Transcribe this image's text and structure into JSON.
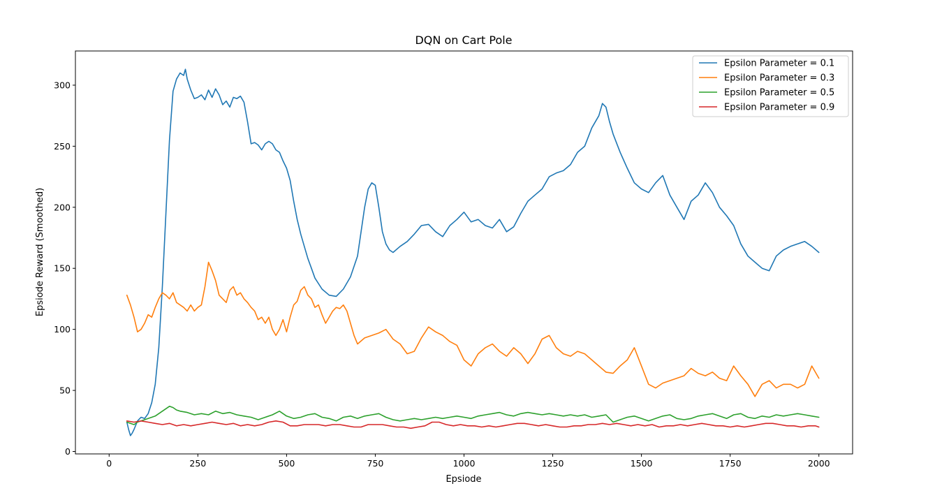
{
  "chart_data": {
    "type": "line",
    "title": "DQN on Cart Pole",
    "xlabel": "Epsiode",
    "ylabel": "Epsiode Reward (Smoothed)",
    "xlim": [
      -95,
      2095
    ],
    "ylim": [
      -2,
      328
    ],
    "xticks": [
      0,
      250,
      500,
      750,
      1000,
      1250,
      1500,
      1750,
      2000
    ],
    "yticks": [
      0,
      50,
      100,
      150,
      200,
      250,
      300
    ],
    "grid": false,
    "legend_position": "top-right",
    "series": [
      {
        "name": "Epsilon Parameter = 0.1",
        "color": "#1f77b4",
        "x": [
          50,
          55,
          60,
          65,
          70,
          80,
          90,
          100,
          110,
          120,
          130,
          140,
          150,
          160,
          170,
          180,
          190,
          200,
          210,
          215,
          220,
          230,
          240,
          250,
          260,
          270,
          280,
          290,
          300,
          310,
          320,
          330,
          340,
          350,
          360,
          370,
          380,
          390,
          400,
          410,
          420,
          430,
          440,
          450,
          460,
          470,
          480,
          490,
          500,
          510,
          520,
          530,
          540,
          550,
          560,
          570,
          580,
          600,
          620,
          640,
          660,
          680,
          700,
          710,
          720,
          730,
          740,
          750,
          760,
          770,
          780,
          790,
          800,
          820,
          840,
          860,
          880,
          900,
          920,
          940,
          960,
          980,
          1000,
          1020,
          1040,
          1060,
          1080,
          1100,
          1120,
          1140,
          1160,
          1180,
          1200,
          1220,
          1240,
          1260,
          1280,
          1300,
          1320,
          1340,
          1360,
          1380,
          1390,
          1400,
          1410,
          1420,
          1440,
          1460,
          1480,
          1500,
          1520,
          1540,
          1560,
          1580,
          1600,
          1620,
          1640,
          1660,
          1680,
          1700,
          1720,
          1740,
          1760,
          1780,
          1800,
          1820,
          1840,
          1860,
          1880,
          1900,
          1920,
          1940,
          1960,
          1980,
          2000
        ],
        "y": [
          24,
          18,
          13,
          15,
          18,
          25,
          28,
          27,
          31,
          40,
          55,
          85,
          135,
          195,
          255,
          295,
          305,
          310,
          308,
          313,
          305,
          296,
          289,
          290,
          292,
          288,
          296,
          290,
          297,
          292,
          284,
          287,
          282,
          290,
          289,
          291,
          286,
          270,
          252,
          253,
          251,
          247,
          252,
          254,
          252,
          247,
          245,
          238,
          232,
          222,
          205,
          190,
          178,
          168,
          158,
          150,
          142,
          133,
          128,
          127,
          133,
          143,
          160,
          180,
          200,
          215,
          220,
          218,
          200,
          180,
          170,
          165,
          163,
          168,
          172,
          178,
          185,
          186,
          180,
          176,
          185,
          190,
          196,
          188,
          190,
          185,
          183,
          190,
          180,
          184,
          195,
          205,
          210,
          215,
          225,
          228,
          230,
          235,
          245,
          250,
          265,
          275,
          285,
          282,
          270,
          260,
          245,
          232,
          220,
          215,
          212,
          220,
          226,
          210,
          200,
          190,
          205,
          210,
          220,
          212,
          200,
          193,
          185,
          170,
          160,
          155,
          150,
          148,
          160,
          165,
          168,
          170,
          172,
          168,
          163
        ]
      },
      {
        "name": "Epsilon Parameter = 0.3",
        "color": "#ff7f0e",
        "x": [
          50,
          60,
          70,
          80,
          90,
          100,
          110,
          120,
          130,
          140,
          150,
          160,
          170,
          180,
          190,
          200,
          210,
          220,
          230,
          240,
          250,
          260,
          270,
          280,
          290,
          300,
          310,
          320,
          330,
          340,
          350,
          360,
          370,
          380,
          390,
          400,
          410,
          420,
          430,
          440,
          450,
          460,
          470,
          480,
          490,
          500,
          510,
          520,
          530,
          540,
          550,
          560,
          570,
          580,
          590,
          600,
          610,
          620,
          630,
          640,
          650,
          660,
          670,
          680,
          690,
          700,
          720,
          740,
          760,
          780,
          800,
          820,
          840,
          860,
          880,
          900,
          920,
          940,
          960,
          980,
          1000,
          1020,
          1040,
          1060,
          1080,
          1100,
          1120,
          1140,
          1160,
          1180,
          1200,
          1220,
          1240,
          1260,
          1280,
          1300,
          1320,
          1340,
          1360,
          1380,
          1400,
          1420,
          1440,
          1460,
          1480,
          1500,
          1520,
          1540,
          1560,
          1580,
          1600,
          1620,
          1640,
          1660,
          1680,
          1700,
          1720,
          1740,
          1760,
          1780,
          1800,
          1820,
          1840,
          1860,
          1880,
          1900,
          1920,
          1940,
          1960,
          1980,
          2000
        ],
        "y": [
          128,
          120,
          110,
          98,
          100,
          105,
          112,
          110,
          118,
          125,
          130,
          128,
          125,
          130,
          122,
          120,
          118,
          115,
          120,
          115,
          118,
          120,
          135,
          155,
          148,
          140,
          128,
          125,
          122,
          132,
          135,
          128,
          130,
          125,
          122,
          118,
          115,
          108,
          110,
          105,
          110,
          100,
          95,
          100,
          108,
          98,
          110,
          120,
          123,
          132,
          135,
          128,
          125,
          118,
          120,
          112,
          105,
          110,
          115,
          118,
          117,
          120,
          115,
          105,
          95,
          88,
          93,
          95,
          97,
          100,
          92,
          88,
          80,
          82,
          93,
          102,
          98,
          95,
          90,
          87,
          75,
          70,
          80,
          85,
          88,
          82,
          78,
          85,
          80,
          72,
          80,
          92,
          95,
          85,
          80,
          78,
          82,
          80,
          75,
          70,
          65,
          64,
          70,
          75,
          85,
          70,
          55,
          52,
          56,
          58,
          60,
          62,
          68,
          64,
          62,
          65,
          60,
          58,
          70,
          62,
          55,
          45,
          55,
          58,
          52,
          55,
          55,
          52,
          55,
          70,
          60
        ]
      },
      {
        "name": "Epsilon Parameter = 0.5",
        "color": "#2ca02c",
        "x": [
          50,
          60,
          70,
          80,
          90,
          100,
          110,
          120,
          130,
          140,
          150,
          160,
          170,
          180,
          190,
          200,
          220,
          240,
          260,
          280,
          300,
          320,
          340,
          360,
          380,
          400,
          420,
          440,
          460,
          480,
          500,
          520,
          540,
          560,
          580,
          600,
          620,
          640,
          660,
          680,
          700,
          720,
          740,
          760,
          780,
          800,
          820,
          840,
          860,
          880,
          900,
          920,
          940,
          960,
          980,
          1000,
          1020,
          1040,
          1060,
          1080,
          1100,
          1120,
          1140,
          1160,
          1180,
          1200,
          1220,
          1240,
          1260,
          1280,
          1300,
          1320,
          1340,
          1360,
          1380,
          1400,
          1420,
          1440,
          1460,
          1480,
          1500,
          1520,
          1540,
          1560,
          1580,
          1600,
          1620,
          1640,
          1660,
          1680,
          1700,
          1720,
          1740,
          1760,
          1780,
          1800,
          1820,
          1840,
          1860,
          1880,
          1900,
          1920,
          1940,
          1960,
          1980,
          2000
        ],
        "y": [
          24,
          23,
          22,
          24,
          25,
          26,
          27,
          28,
          29,
          31,
          33,
          35,
          37,
          36,
          34,
          33,
          32,
          30,
          31,
          30,
          33,
          31,
          32,
          30,
          29,
          28,
          26,
          28,
          30,
          33,
          29,
          27,
          28,
          30,
          31,
          28,
          27,
          25,
          28,
          29,
          27,
          29,
          30,
          31,
          28,
          26,
          25,
          26,
          27,
          26,
          27,
          28,
          27,
          28,
          29,
          28,
          27,
          29,
          30,
          31,
          32,
          30,
          29,
          31,
          32,
          31,
          30,
          31,
          30,
          29,
          30,
          29,
          30,
          28,
          29,
          30,
          24,
          26,
          28,
          29,
          27,
          25,
          27,
          29,
          30,
          27,
          26,
          27,
          29,
          30,
          31,
          29,
          27,
          30,
          31,
          28,
          27,
          29,
          28,
          30,
          29,
          30,
          31,
          30,
          29,
          28
        ]
      },
      {
        "name": "Epsilon Parameter = 0.9",
        "color": "#d62728",
        "x": [
          50,
          70,
          90,
          110,
          130,
          150,
          170,
          190,
          210,
          230,
          250,
          270,
          290,
          310,
          330,
          350,
          370,
          390,
          410,
          430,
          450,
          470,
          490,
          510,
          530,
          550,
          570,
          590,
          610,
          630,
          650,
          670,
          690,
          710,
          730,
          750,
          770,
          790,
          810,
          830,
          850,
          870,
          890,
          910,
          930,
          950,
          970,
          990,
          1010,
          1030,
          1050,
          1070,
          1090,
          1110,
          1130,
          1150,
          1170,
          1190,
          1210,
          1230,
          1250,
          1270,
          1290,
          1310,
          1330,
          1350,
          1370,
          1390,
          1410,
          1430,
          1450,
          1470,
          1490,
          1510,
          1530,
          1550,
          1570,
          1590,
          1610,
          1630,
          1650,
          1670,
          1690,
          1710,
          1730,
          1750,
          1770,
          1790,
          1810,
          1830,
          1850,
          1870,
          1890,
          1910,
          1930,
          1950,
          1970,
          1990,
          2000
        ],
        "y": [
          25,
          24,
          25,
          24,
          23,
          22,
          23,
          21,
          22,
          21,
          22,
          23,
          24,
          23,
          22,
          23,
          21,
          22,
          21,
          22,
          24,
          25,
          24,
          21,
          21,
          22,
          22,
          22,
          21,
          22,
          22,
          21,
          20,
          20,
          22,
          22,
          22,
          21,
          20,
          20,
          19,
          20,
          21,
          24,
          24,
          22,
          21,
          22,
          21,
          21,
          20,
          21,
          20,
          21,
          22,
          23,
          23,
          22,
          21,
          22,
          21,
          20,
          20,
          21,
          21,
          22,
          22,
          23,
          22,
          23,
          22,
          21,
          22,
          21,
          22,
          20,
          21,
          21,
          22,
          21,
          22,
          23,
          22,
          21,
          21,
          20,
          21,
          20,
          21,
          22,
          23,
          23,
          22,
          21,
          21,
          20,
          21,
          21,
          20
        ]
      }
    ]
  }
}
